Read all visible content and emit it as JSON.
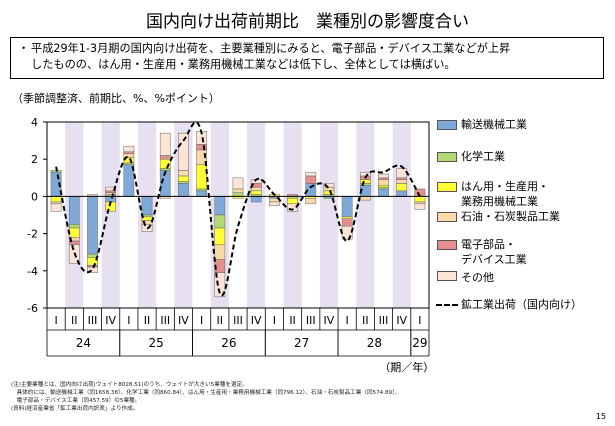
{
  "page": {
    "title": "国内向け出荷前期比　業種別の影響度合い",
    "summary_bullet": "・",
    "summary_line1": "平成29年1-3月期の国内向け出荷を、主要業種別にみると、電子部品・デバイス工業などが上昇",
    "summary_line2": "したものの、はん用・生産用・業務用機械工業などは低下し、全体としては横ばい。",
    "unit_label": "（季節調整済、前期比、%、%ポイント）",
    "period_label": "（期／年）",
    "page_number": "15",
    "notes": [
      "(注)主要業種とは、国内向け出荷(ウェイト8028.51)のうち、ウェイトが大きい5業種を選定。",
      "　具体的には、輸送機械工業（同1658.38）、化学工業（同860.84）、はん用・生産用・業務用機械工業（同796.12）、石油・石炭製品工業（同574.89）、",
      "　電子部品・デバイス工業（同457.59）の5業種。",
      "(資料)経済産業省「鉱工業出荷内訳表」より作成。"
    ]
  },
  "legend_lines": {
    "transport": [
      "輸送機械工業"
    ],
    "chemical": [
      "化学工業"
    ],
    "machinery": [
      "はん用・生産用・",
      "業務用機械工業"
    ],
    "petroleum": [
      "石油・石炭製品工業"
    ],
    "electronic": [
      "電子部品・",
      "デバイス工業"
    ],
    "other": [
      "その他"
    ],
    "line": [
      "鉱工業出荷（国内向け）"
    ]
  },
  "colors": {
    "transport": "#7fa9d6",
    "chemical": "#b3d977",
    "machinery": "#ffff33",
    "petroleum": "#f8d9a8",
    "electronic": "#e58e8e",
    "other": "#fce4d6",
    "shade": "#e6e0f0",
    "line": "#000000"
  },
  "chart_data": {
    "type": "bar",
    "stacked": true,
    "ylim": [
      -6,
      4
    ],
    "yticks": [
      -6,
      -4,
      -2,
      0,
      2,
      4
    ],
    "categories": [
      "I",
      "II",
      "III",
      "IV",
      "I",
      "II",
      "III",
      "IV",
      "I",
      "II",
      "III",
      "IV",
      "I",
      "II",
      "III",
      "IV",
      "I",
      "II",
      "III",
      "IV",
      "I"
    ],
    "years": [
      {
        "label": "24",
        "start": 0,
        "end": 3
      },
      {
        "label": "25",
        "start": 4,
        "end": 7
      },
      {
        "label": "26",
        "start": 8,
        "end": 11
      },
      {
        "label": "27",
        "start": 12,
        "end": 15
      },
      {
        "label": "28",
        "start": 16,
        "end": 19
      },
      {
        "label": "29",
        "start": 20,
        "end": 20
      }
    ],
    "shaded_quarters": [
      1,
      3,
      5,
      7,
      9,
      11,
      13,
      15,
      17,
      19
    ],
    "series": [
      {
        "key": "transport",
        "name": "輸送機械工業",
        "values": [
          1.3,
          -1.5,
          -3.1,
          -0.3,
          1.7,
          -1.0,
          1.4,
          0.7,
          0.3,
          -1.0,
          0.0,
          -0.3,
          -0.1,
          0.0,
          0.7,
          -0.1,
          -1.1,
          0.6,
          0.4,
          0.3,
          0.0
        ]
      },
      {
        "key": "chemical",
        "name": "化学工業",
        "values": [
          0.1,
          -0.2,
          -0.2,
          0.1,
          0.1,
          -0.1,
          0.1,
          0.1,
          0.1,
          -0.7,
          0.2,
          0.1,
          0.0,
          -0.1,
          0.0,
          0.1,
          0.0,
          0.1,
          0.1,
          0.0,
          0.0
        ]
      },
      {
        "key": "machinery",
        "name": "はん用・生産用・業務用機械工業",
        "values": [
          -0.3,
          -0.5,
          -0.4,
          -0.5,
          0.3,
          -0.2,
          0.5,
          0.3,
          1.3,
          -0.9,
          -0.1,
          0.2,
          0.1,
          -0.3,
          -0.1,
          0.2,
          -0.1,
          0.2,
          0.1,
          0.4,
          -0.3
        ]
      },
      {
        "key": "petroleum",
        "name": "石油・石炭製品工業",
        "values": [
          -0.1,
          -0.2,
          0.1,
          0.1,
          0.2,
          -0.2,
          -0.1,
          0.3,
          0.8,
          -0.8,
          0.2,
          0.2,
          -0.2,
          0.0,
          -0.3,
          0.2,
          0.0,
          -0.2,
          0.3,
          0.2,
          -0.1
        ]
      },
      {
        "key": "electronic",
        "name": "電子部品・デバイス工業",
        "values": [
          0.0,
          -0.2,
          -0.1,
          0.1,
          0.1,
          0.0,
          0.2,
          0.0,
          0.3,
          -0.7,
          0.0,
          0.2,
          0.0,
          0.1,
          0.4,
          0.0,
          -0.4,
          0.2,
          0.1,
          0.1,
          0.4
        ]
      },
      {
        "key": "other",
        "name": "その他",
        "values": [
          -0.4,
          -1.0,
          -0.3,
          0.2,
          0.3,
          -0.4,
          1.2,
          2.0,
          0.7,
          -1.3,
          0.6,
          0.2,
          -0.2,
          -0.4,
          0.2,
          0.2,
          -0.7,
          0.2,
          0.2,
          0.5,
          -0.3
        ]
      }
    ],
    "line_series": {
      "key": "line",
      "name": "鉱工業出荷（国内向け）",
      "values": [
        1.6,
        -3.0,
        -3.9,
        -0.3,
        2.1,
        -1.7,
        1.3,
        3.0,
        3.4,
        -5.2,
        -1.6,
        0.9,
        0.1,
        -0.7,
        0.5,
        0.4,
        -2.4,
        1.0,
        1.3,
        1.6,
        0.0
      ]
    }
  }
}
